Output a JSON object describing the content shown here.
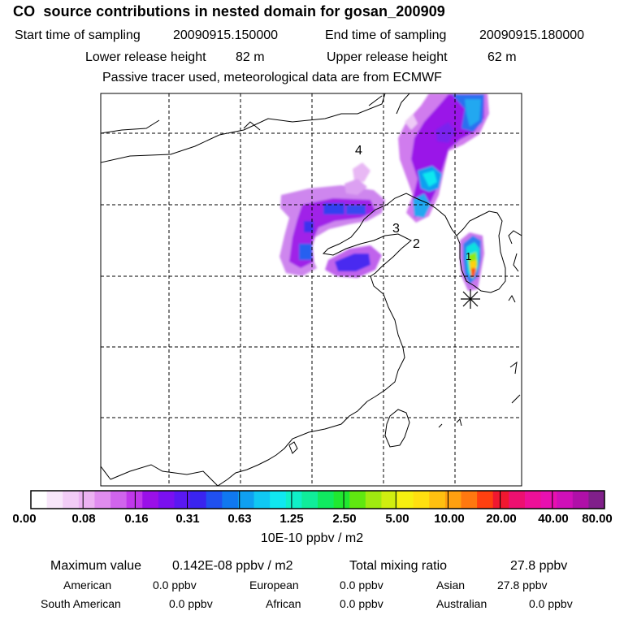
{
  "header": {
    "title": "CO  source contributions in nested domain for gosan_200909",
    "start_label": "Start time of sampling",
    "start_value": "20090915.150000",
    "end_label": "End time of sampling",
    "end_value": "20090915.180000",
    "lower_label": "Lower release height",
    "lower_value": "82 m",
    "upper_label": "Upper release height",
    "upper_value": "62 m",
    "note": "Passive tracer used, meteorological data are from ECMWF"
  },
  "map": {
    "region_labels": [
      "1",
      "2",
      "3",
      "4"
    ],
    "receptor_marker": "asterisk-icon"
  },
  "colorbar": {
    "ticks": [
      "0.00",
      "0.08",
      "0.16",
      "0.31",
      "0.63",
      "1.25",
      "2.50",
      "5.00",
      "10.00",
      "20.00",
      "40.00",
      "80.00"
    ],
    "colors": [
      "#ffffff",
      "#f8e6fa",
      "#f2ccf6",
      "#ecb2f2",
      "#e08cef",
      "#d064ec",
      "#c038ea",
      "#9a10e8",
      "#7a10f0",
      "#5a18f2",
      "#3a24f0",
      "#2050f0",
      "#1078f0",
      "#10a0f0",
      "#10c8f2",
      "#10e8f0",
      "#10f0c8",
      "#10ee9a",
      "#10ea60",
      "#20e830",
      "#60e810",
      "#a0ea10",
      "#d0ee10",
      "#f6f010",
      "#ffe010",
      "#ffc010",
      "#ffa010",
      "#ff7810",
      "#ff4010",
      "#f01830",
      "#ee1070",
      "#ee1098",
      "#e810b0",
      "#d010b8",
      "#b010a8",
      "#80208a"
    ],
    "units": "10E-10 ppbv / m2"
  },
  "stats": {
    "max_label": "Maximum value",
    "max_value": "0.142E-08 ppbv / m2",
    "total_label": "Total mixing ratio",
    "total_value": "27.8 ppbv",
    "regions": [
      {
        "name": "American",
        "value": "0.0 ppbv"
      },
      {
        "name": "European",
        "value": "0.0 ppbv"
      },
      {
        "name": "Asian",
        "value": "27.8 ppbv"
      },
      {
        "name": "South American",
        "value": "0.0 ppbv"
      },
      {
        "name": "African",
        "value": "0.0 ppbv"
      },
      {
        "name": "Australian",
        "value": "0.0 ppbv"
      }
    ]
  }
}
